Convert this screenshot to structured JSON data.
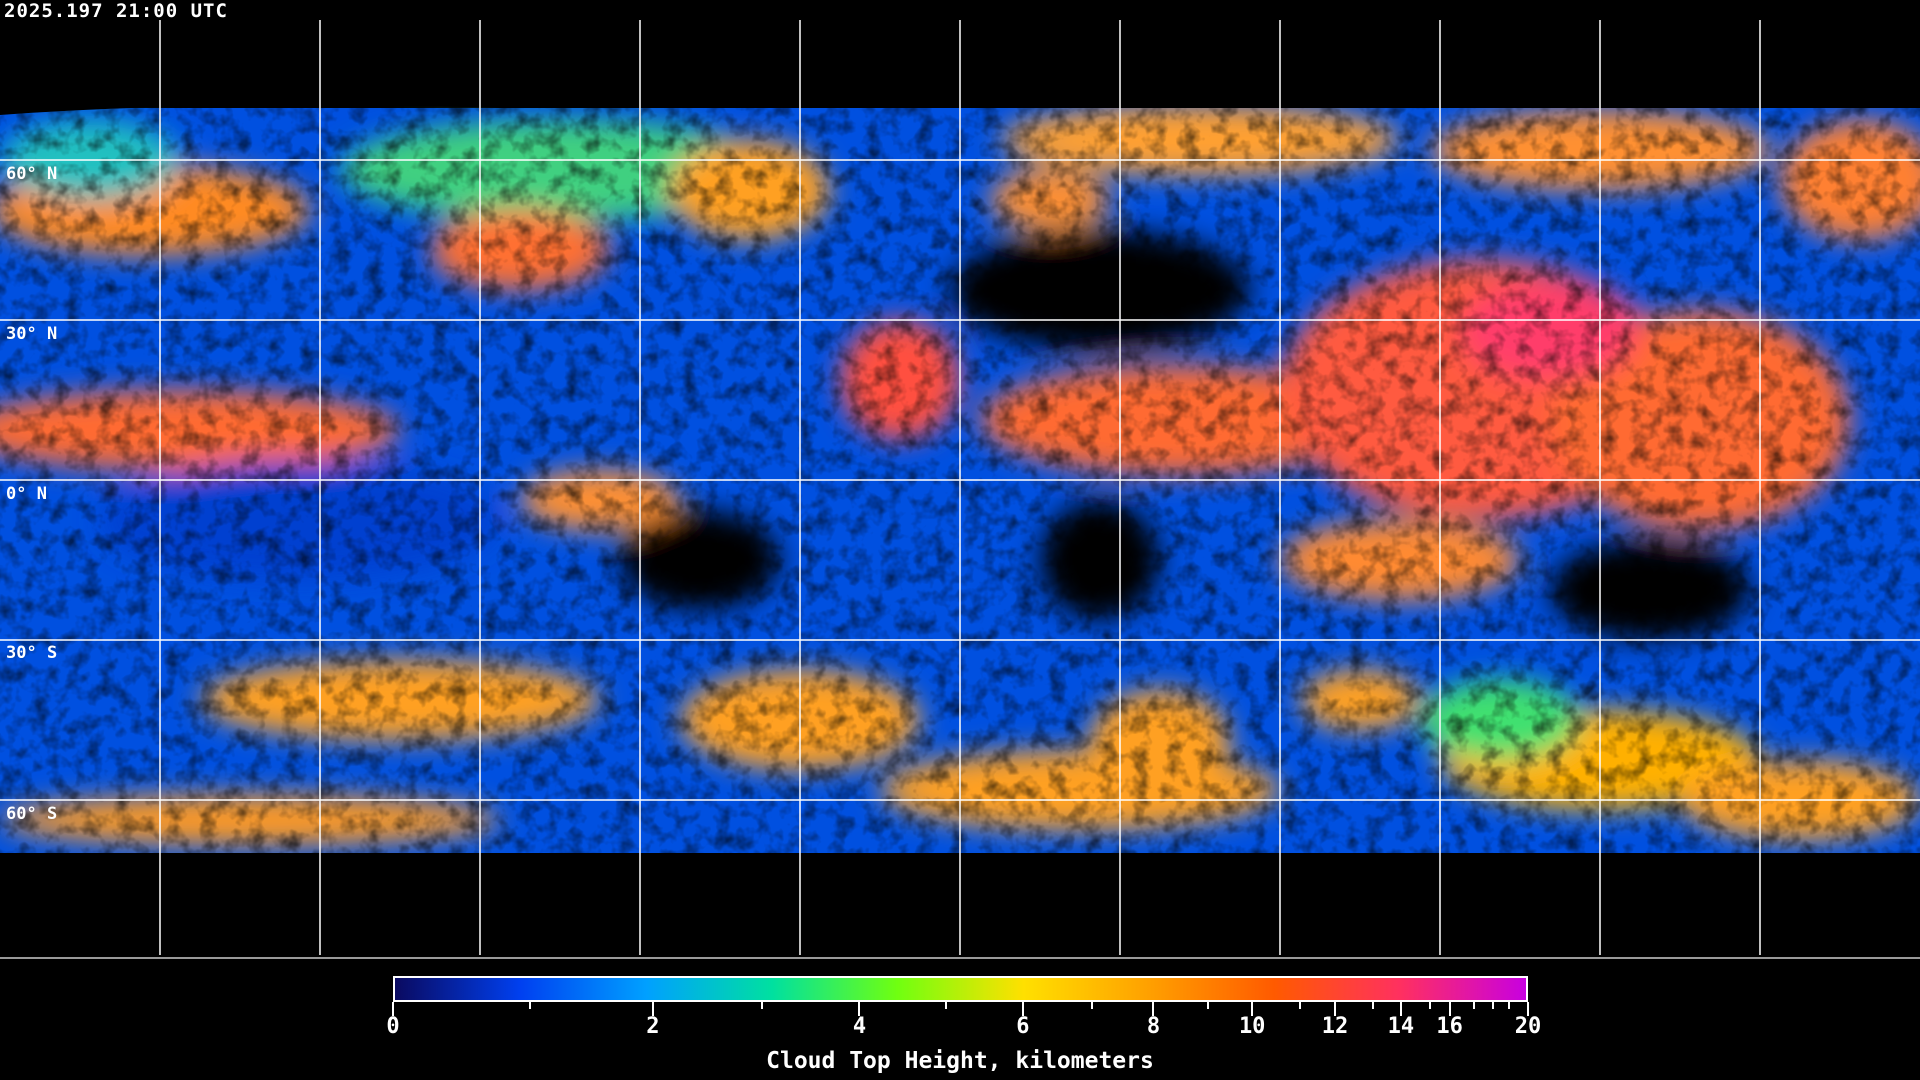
{
  "timestamp": "2025.197 21:00 UTC",
  "latitude_labels": [
    "60° N",
    "30° N",
    "0° N",
    "30° S",
    "60° S"
  ],
  "colorbar": {
    "title": "Cloud Top Height, kilometers",
    "range_km": [
      0,
      20
    ],
    "major_ticks": [
      "0",
      "2",
      "4",
      "6",
      "8",
      "10",
      "12",
      "14",
      "16",
      "20"
    ],
    "minor_ticks_km": [
      1,
      3,
      5,
      7,
      9,
      11,
      13,
      15,
      17,
      18,
      19
    ],
    "colors": [
      "#0a0a60",
      "#0040f0",
      "#00a0ff",
      "#00e0a0",
      "#70ff10",
      "#ffe000",
      "#ffa000",
      "#ff5a00",
      "#ff3060",
      "#c800e0"
    ]
  },
  "map": {
    "projection": "equirectangular",
    "grid_spacing_degrees": 30,
    "grid_color": "#ffffff",
    "coastline_color": "#ffffff",
    "no_data_color": "#000000"
  }
}
